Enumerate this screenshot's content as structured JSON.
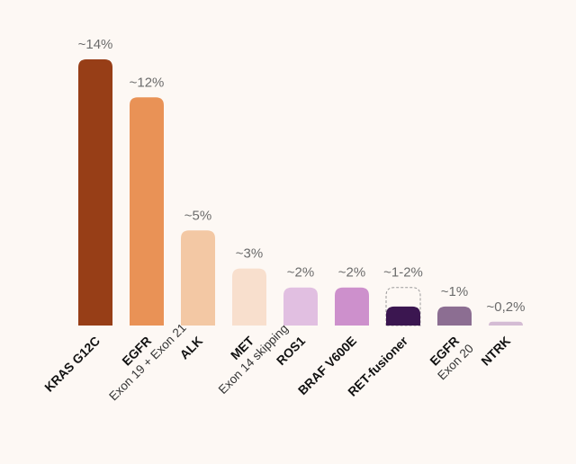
{
  "chart_data": {
    "type": "bar",
    "categories": [
      {
        "name": "KRAS G12C",
        "sub": ""
      },
      {
        "name": "EGFR",
        "sub": "Exon 19 + Exon 21"
      },
      {
        "name": "ALK",
        "sub": ""
      },
      {
        "name": "MET",
        "sub": "Exon 14 skipping"
      },
      {
        "name": "ROS1",
        "sub": ""
      },
      {
        "name": "BRAF V600E",
        "sub": ""
      },
      {
        "name": "RET-fusioner",
        "sub": ""
      },
      {
        "name": "EGFR",
        "sub": "Exon 20"
      },
      {
        "name": "NTRK",
        "sub": ""
      }
    ],
    "values": [
      14,
      12,
      5,
      3,
      2,
      2,
      1,
      1,
      0.2
    ],
    "range_max": [
      null,
      null,
      null,
      null,
      null,
      null,
      2,
      null,
      null
    ],
    "value_labels": [
      "~14%",
      "~12%",
      "~5%",
      "~3%",
      "~2%",
      "~2%",
      "~1-2%",
      "~1%",
      "~0,2%"
    ],
    "colors": [
      "#973e17",
      "#e99256",
      "#f3c8a4",
      "#f8dfcd",
      "#e1bfe1",
      "#cd90cc",
      "#3b1650",
      "#8c6e92",
      "#d4bcd4"
    ],
    "ylim": [
      0,
      14
    ],
    "grid": false,
    "legend": "none",
    "title": "",
    "xlabel": "",
    "ylabel": ""
  }
}
